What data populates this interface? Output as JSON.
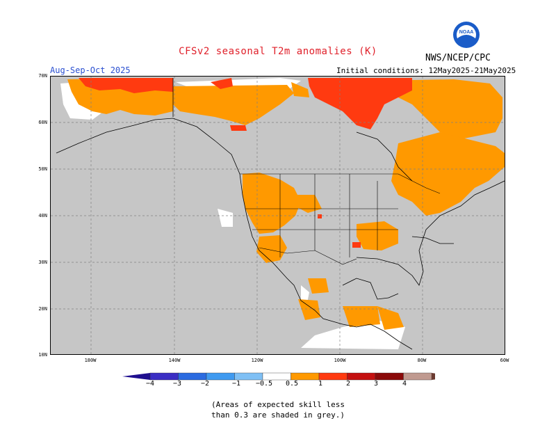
{
  "title": "CFSv2 seasonal T2m anomalies (K)",
  "agency": "NWS/NCEP/CPC",
  "logo_text": "NOAA",
  "period": "Aug-Sep-Oct 2025",
  "initial_conditions": "Initial conditions: 12May2025-21May2025",
  "lat_labels": [
    "70N",
    "60N",
    "50N",
    "40N",
    "30N",
    "20N",
    "10N"
  ],
  "lon_labels": [
    "180W",
    "140W",
    "120W",
    "100W",
    "80W",
    "60W"
  ],
  "colorbar": {
    "labels": [
      "−4",
      "−3",
      "−2",
      "−1",
      "−0.5",
      "0.5",
      "1",
      "2",
      "3",
      "4"
    ],
    "colors": [
      "#1f0f8f",
      "#3b2ec4",
      "#2b6be0",
      "#3f9af0",
      "#7fc0f5",
      "#ffffff",
      "#ff9900",
      "#ff3a10",
      "#c41010",
      "#8a0a0a",
      "#c09a90",
      "#6a3a30"
    ]
  },
  "note_line1": "(Areas of expected skill less",
  "note_line2": "than 0.3 are shaded in grey.)",
  "colors": {
    "grey": "#c6c6c6",
    "light_anom": "#ff9900",
    "med_anom": "#ff3a10",
    "title_red": "#e0202a",
    "period_blue": "#2a4fd0"
  }
}
